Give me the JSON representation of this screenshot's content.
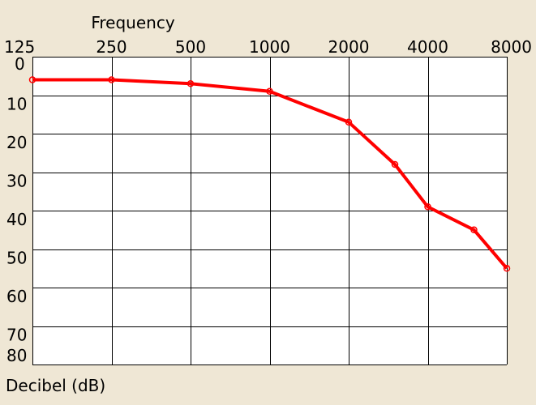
{
  "chart_data": {
    "type": "line",
    "title": "",
    "xlabel": "Frequency",
    "ylabel": "Decibel (dB)",
    "x_scale": "log2",
    "x_axis_position": "top",
    "y_inverted": true,
    "grid": true,
    "x_ticks": [
      "125",
      "250",
      "500",
      "1000",
      "2000",
      "4000",
      "8000"
    ],
    "y_ticks": [
      "0",
      "10",
      "20",
      "30",
      "40",
      "50",
      "60",
      "70",
      "80"
    ],
    "xlim": [
      125,
      8000
    ],
    "ylim": [
      0,
      80
    ],
    "series": [
      {
        "color": "#ff0000",
        "points": [
          {
            "x": 125,
            "y": 6
          },
          {
            "x": 250,
            "y": 6
          },
          {
            "x": 500,
            "y": 7
          },
          {
            "x": 1000,
            "y": 9
          },
          {
            "x": 2000,
            "y": 17
          },
          {
            "x": 3000,
            "y": 28
          },
          {
            "x": 4000,
            "y": 39
          },
          {
            "x": 6000,
            "y": 45
          },
          {
            "x": 8000,
            "y": 55
          }
        ]
      }
    ]
  },
  "colors": {
    "background": "#efe7d5",
    "plot_area": "#ffffff",
    "grid": "#000000",
    "series": "#ff0000"
  }
}
